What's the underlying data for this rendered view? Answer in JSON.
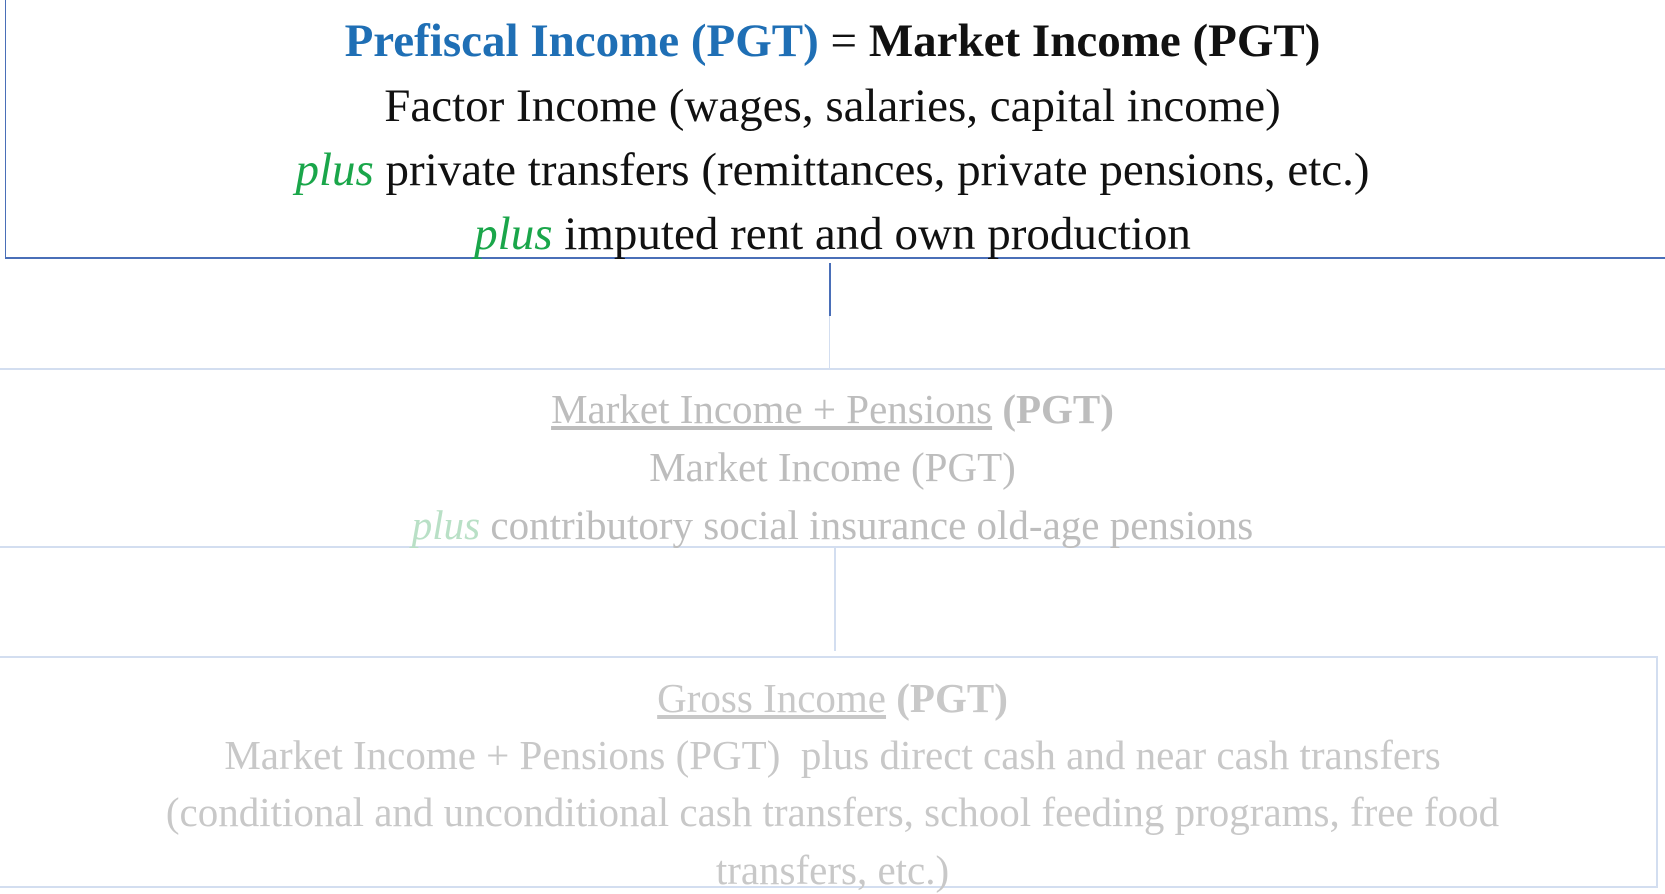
{
  "boxes": [
    {
      "heading": [
        "Prefiscal Income (PGT)",
        "=",
        "Market Income (PGT)"
      ],
      "lines": [
        [
          "Factor Income (wages, salaries, capital income)"
        ],
        [
          "plus",
          "private transfers (remittances, private pensions, etc.)"
        ],
        [
          "plus",
          "imputed rent and own production"
        ]
      ]
    },
    {
      "heading": [
        "Market Income + Pensions",
        "(PGT)"
      ],
      "lines": [
        [
          "Market Income (PGT)"
        ],
        [
          "plus",
          "contributory social insurance old-age pensions"
        ]
      ]
    },
    {
      "heading": [
        "Gross Income",
        "(PGT)"
      ],
      "lines": [
        [
          "Market Income + Pensions (PGT)  plus direct cash and near cash transfers"
        ],
        [
          "(conditional and unconditional cash transfers, school feeding programs, free food"
        ],
        [
          "transfers, etc.)"
        ]
      ]
    }
  ]
}
